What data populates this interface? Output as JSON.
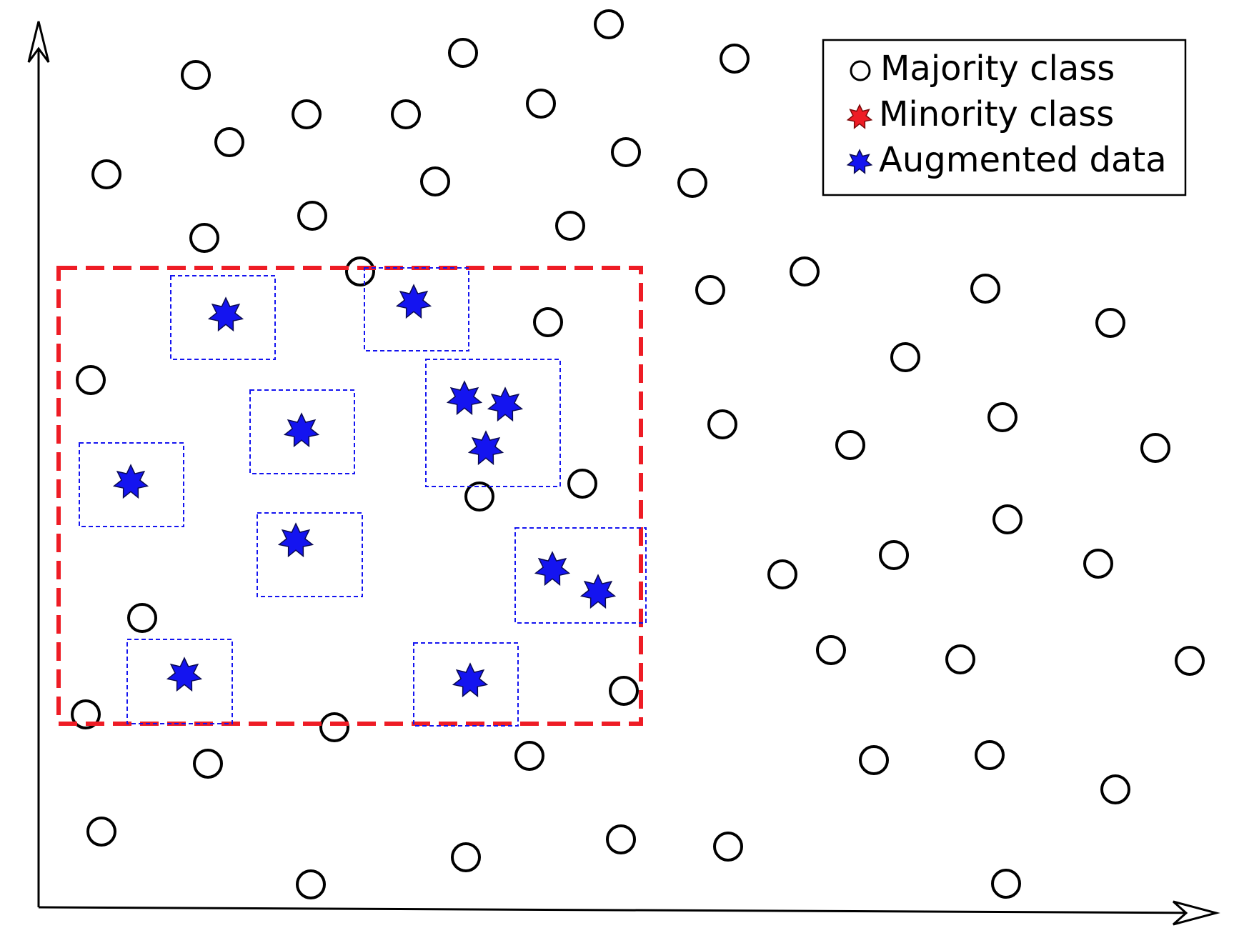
{
  "colors": {
    "axis": "#000000",
    "majority_stroke": "#000000",
    "majority_fill": "#ffffff",
    "minority_fill": "#ee1c25",
    "augmented_fill": "#1414f0",
    "augmented_stroke": "#0a0a50",
    "region_box": "#ee1c25",
    "neighborhood_box": "#1414f0"
  },
  "legend": {
    "items": [
      {
        "label": "Majority class",
        "marker": "circle"
      },
      {
        "label": "Minority class",
        "marker": "star-red"
      },
      {
        "label": "Augmented data",
        "marker": "star-blue"
      }
    ]
  }
}
